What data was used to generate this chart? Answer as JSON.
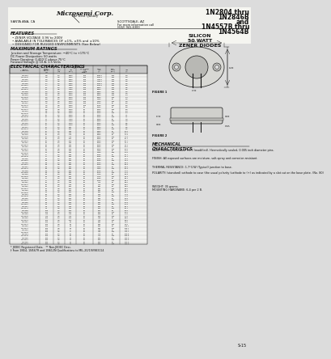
{
  "title_right_line1": "1N2804 thru",
  "title_right_line2": "1N2846B",
  "title_right_line3": "and",
  "title_right_line4": "1N4557B thru",
  "title_right_line5": "1N4564B",
  "silicon_label": "SILICON",
  "watt_label": "50 WATT",
  "zener_label": "ZENER DIODES",
  "company": "Microsemi Corp.",
  "company_sub": "The Best Quality",
  "city_left": "SANTA ANA, CA",
  "city_right": "SCOTTSDALE, AZ",
  "city_right2": "For more information call",
  "city_right3": "(602) 941-6300",
  "features_title": "FEATURES",
  "features": [
    "ZENER VOLTAGE 3.9V to 200V",
    "AVAILABLE IN TOLERANCES OF ±1%, ±5% and ±10%",
    "DESIGNED FOR RUGGED ENVIRONMENTS (See Below)"
  ],
  "max_ratings_title": "MAXIMUM RATINGS",
  "max_ratings": [
    "Junction and Storage Temperature: −40°C to +175°C",
    "DC Power Dissipation: 50 watts",
    "Power Derating: 0.400°C above 75°C",
    "Forward Voltage @ 10 A: 1.5 Volts"
  ],
  "elec_char_title": "ELECTRICAL CHARACTERISTICS",
  "elec_char_temp": "@25°C",
  "table_rows": [
    [
      "1N2804",
      "3.9",
      "2.0",
      "3200",
      "100",
      "12800",
      "150",
      "2.8"
    ],
    [
      "1N2804A",
      "3.9",
      "0.8",
      "3200",
      "100",
      "12800",
      "200",
      "2.8"
    ],
    [
      "1N2805",
      "4.3",
      "2.0",
      "2900",
      "100",
      "11600",
      "150",
      "3.0"
    ],
    [
      "1N2805A",
      "4.3",
      "0.8",
      "2900",
      "100",
      "11600",
      "200",
      "3.0"
    ],
    [
      "1N2806",
      "4.7",
      "2.0",
      "2650",
      "100",
      "10600",
      "150",
      "3.3"
    ],
    [
      "1N2806A",
      "4.7",
      "0.8",
      "2650",
      "100",
      "10600",
      "200",
      "3.3"
    ],
    [
      "1N2807",
      "5.1",
      "2.0",
      "2450",
      "100",
      "9800",
      "150",
      "3.6"
    ],
    [
      "1N2807A",
      "5.1",
      "0.8",
      "2450",
      "100",
      "9800",
      "200",
      "3.6"
    ],
    [
      "1N2808",
      "5.6",
      "2.0",
      "2200",
      "100",
      "8900",
      "100",
      "4.0"
    ],
    [
      "1N2808A",
      "5.6",
      "0.8",
      "2200",
      "100",
      "8900",
      "200",
      "4.0"
    ],
    [
      "1N2809",
      "6.2",
      "2.0",
      "2000",
      "100",
      "8100",
      "100",
      "4.4"
    ],
    [
      "1N2809A",
      "6.2",
      "0.8",
      "2000",
      "100",
      "8100",
      "200",
      "4.4"
    ],
    [
      "1N2810",
      "6.8",
      "2.0",
      "1800",
      "100",
      "7400",
      "50",
      "4.8"
    ],
    [
      "1N2810A",
      "6.8",
      "0.8",
      "1800",
      "100",
      "7400",
      "200",
      "4.8"
    ],
    [
      "1N2811",
      "7.5",
      "2.0",
      "1650",
      "100",
      "6700",
      "50",
      "5.3"
    ],
    [
      "1N2811A",
      "7.5",
      "0.8",
      "1650",
      "100",
      "6700",
      "200",
      "5.3"
    ],
    [
      "1N2812",
      "8.2",
      "2.0",
      "1500",
      "50",
      "6100",
      "50",
      "5.8"
    ],
    [
      "1N2812A",
      "8.2",
      "0.8",
      "1500",
      "50",
      "6100",
      "200",
      "5.8"
    ],
    [
      "1N2813",
      "9.1",
      "2.0",
      "1350",
      "50",
      "5500",
      "50",
      "6.4"
    ],
    [
      "1N2813A",
      "9.1",
      "0.8",
      "1350",
      "50",
      "5500",
      "200",
      "6.4"
    ],
    [
      "1N2814",
      "10",
      "2.0",
      "1250",
      "25",
      "5000",
      "50",
      "7.1"
    ],
    [
      "1N2814A",
      "10",
      "0.8",
      "1250",
      "25",
      "5000",
      "200",
      "7.1"
    ],
    [
      "1N2815",
      "11",
      "2.0",
      "1100",
      "25",
      "4500",
      "50",
      "7.8"
    ],
    [
      "1N2815A",
      "11",
      "0.8",
      "1100",
      "25",
      "4500",
      "200",
      "7.8"
    ],
    [
      "1N2816",
      "12",
      "2.0",
      "1000",
      "25",
      "4200",
      "50",
      "8.5"
    ],
    [
      "1N2816A",
      "12",
      "0.8",
      "1000",
      "25",
      "4200",
      "200",
      "8.5"
    ],
    [
      "1N2817",
      "13",
      "2.0",
      "950",
      "25",
      "3800",
      "50",
      "9.2"
    ],
    [
      "1N2817A",
      "13",
      "0.8",
      "950",
      "25",
      "3800",
      "200",
      "9.2"
    ],
    [
      "1N2818",
      "15",
      "2.0",
      "825",
      "25",
      "3300",
      "50",
      "10.6"
    ],
    [
      "1N2818A",
      "15",
      "0.8",
      "825",
      "25",
      "3300",
      "200",
      "10.6"
    ],
    [
      "1N2819",
      "16",
      "2.0",
      "775",
      "25",
      "3200",
      "50",
      "11.3"
    ],
    [
      "1N2819A",
      "16",
      "0.8",
      "775",
      "25",
      "3200",
      "200",
      "11.3"
    ],
    [
      "1N2820",
      "18",
      "2.0",
      "700",
      "25",
      "2800",
      "50",
      "12.7"
    ],
    [
      "1N2820A",
      "18",
      "0.8",
      "700",
      "25",
      "2800",
      "200",
      "12.7"
    ],
    [
      "1N2821",
      "20",
      "2.0",
      "625",
      "25",
      "2500",
      "50",
      "14.1"
    ],
    [
      "1N2821A",
      "20",
      "0.8",
      "625",
      "25",
      "2500",
      "200",
      "14.1"
    ],
    [
      "1N2822",
      "22",
      "2.0",
      "565",
      "25",
      "2300",
      "50",
      "15.5"
    ],
    [
      "1N2822A",
      "22",
      "0.8",
      "565",
      "25",
      "2300",
      "200",
      "15.5"
    ],
    [
      "1N2823",
      "24",
      "2.0",
      "520",
      "25",
      "2100",
      "50",
      "17.0"
    ],
    [
      "1N2823A",
      "24",
      "0.8",
      "520",
      "25",
      "2100",
      "200",
      "17.0"
    ],
    [
      "1N2824",
      "27",
      "2.0",
      "465",
      "25",
      "1850",
      "50",
      "19.1"
    ],
    [
      "1N2824A",
      "27",
      "0.8",
      "465",
      "25",
      "1850",
      "200",
      "19.1"
    ],
    [
      "1N2825",
      "30",
      "2.0",
      "420",
      "25",
      "1650",
      "50",
      "21.2"
    ],
    [
      "1N2825A",
      "30",
      "0.8",
      "420",
      "25",
      "1650",
      "200",
      "21.2"
    ],
    [
      "1N2826",
      "33",
      "2.0",
      "380",
      "25",
      "1500",
      "50",
      "23.3"
    ],
    [
      "1N2826A",
      "33",
      "0.8",
      "380",
      "25",
      "1500",
      "200",
      "23.3"
    ],
    [
      "1N2827",
      "36",
      "2.0",
      "350",
      "25",
      "1400",
      "50",
      "25.4"
    ],
    [
      "1N2827A",
      "36",
      "0.8",
      "350",
      "25",
      "1400",
      "200",
      "25.4"
    ],
    [
      "1N2828",
      "39",
      "2.0",
      "320",
      "25",
      "1275",
      "50",
      "27.5"
    ],
    [
      "1N2828A",
      "39",
      "0.8",
      "320",
      "25",
      "1275",
      "200",
      "27.5"
    ],
    [
      "1N2829",
      "43",
      "2.0",
      "290",
      "25",
      "1175",
      "50",
      "30.3"
    ],
    [
      "1N2829A",
      "43",
      "0.8",
      "290",
      "25",
      "1175",
      "200",
      "30.3"
    ],
    [
      "1N2830",
      "47",
      "2.0",
      "265",
      "25",
      "1050",
      "50",
      "33.1"
    ],
    [
      "1N2830A",
      "47",
      "0.8",
      "265",
      "25",
      "1050",
      "200",
      "33.1"
    ],
    [
      "1N2831",
      "51",
      "2.0",
      "245",
      "25",
      "975",
      "50",
      "36.0"
    ],
    [
      "1N2831A",
      "51",
      "0.8",
      "245",
      "25",
      "975",
      "200",
      "36.0"
    ],
    [
      "1N2832",
      "56",
      "2.0",
      "220",
      "25",
      "900",
      "50",
      "39.5"
    ],
    [
      "1N2832A",
      "56",
      "0.8",
      "220",
      "25",
      "900",
      "200",
      "39.5"
    ],
    [
      "1N2833",
      "62",
      "2.0",
      "200",
      "25",
      "800",
      "50",
      "43.7"
    ],
    [
      "1N2833A",
      "62",
      "0.8",
      "200",
      "25",
      "800",
      "200",
      "43.7"
    ],
    [
      "1N2834",
      "68",
      "2.0",
      "185",
      "25",
      "735",
      "50",
      "47.9"
    ],
    [
      "1N2834A",
      "68",
      "0.8",
      "185",
      "25",
      "735",
      "200",
      "47.9"
    ],
    [
      "1N2835",
      "75",
      "2.0",
      "165",
      "25",
      "665",
      "50",
      "52.9"
    ],
    [
      "1N2835A",
      "75",
      "0.8",
      "165",
      "25",
      "665",
      "200",
      "52.9"
    ],
    [
      "1N2836",
      "82",
      "2.0",
      "155",
      "25",
      "610",
      "50",
      "57.8"
    ],
    [
      "1N2836A",
      "82",
      "0.8",
      "155",
      "25",
      "610",
      "200",
      "57.8"
    ],
    [
      "1N2837",
      "91",
      "2.0",
      "140",
      "25",
      "550",
      "50",
      "64.1"
    ],
    [
      "1N2837A",
      "91",
      "0.8",
      "140",
      "25",
      "550",
      "200",
      "64.1"
    ],
    [
      "1N2838",
      "100",
      "2.0",
      "125",
      "25",
      "500",
      "50",
      "70.5"
    ],
    [
      "1N2838A",
      "100",
      "0.8",
      "125",
      "25",
      "500",
      "200",
      "70.5"
    ],
    [
      "1N2839",
      "110",
      "2.0",
      "115",
      "25",
      "455",
      "50",
      "77.5"
    ],
    [
      "1N2839A",
      "110",
      "0.8",
      "115",
      "25",
      "455",
      "200",
      "77.5"
    ],
    [
      "1N2840",
      "120",
      "2.0",
      "105",
      "25",
      "415",
      "50",
      "84.6"
    ],
    [
      "1N2840A",
      "120",
      "0.8",
      "105",
      "25",
      "415",
      "200",
      "84.6"
    ],
    [
      "1N2841",
      "130",
      "2.0",
      "95",
      "25",
      "385",
      "50",
      "91.6"
    ],
    [
      "1N2841A",
      "130",
      "0.8",
      "95",
      "25",
      "385",
      "200",
      "91.6"
    ],
    [
      "1N2842",
      "150",
      "2.0",
      "83",
      "25",
      "330",
      "50",
      "105.7"
    ],
    [
      "1N2842A",
      "150",
      "0.8",
      "83",
      "25",
      "330",
      "200",
      "105.7"
    ],
    [
      "1N2843",
      "160",
      "2.0",
      "77",
      "25",
      "315",
      "50",
      "112.7"
    ],
    [
      "1N2843A",
      "160",
      "0.8",
      "77",
      "25",
      "315",
      "200",
      "112.7"
    ],
    [
      "1N2844",
      "180",
      "2.0",
      "68",
      "25",
      "275",
      "50",
      "126.8"
    ],
    [
      "1N2844A",
      "180",
      "0.8",
      "68",
      "25",
      "275",
      "200",
      "126.8"
    ],
    [
      "1N2845",
      "200",
      "2.0",
      "63",
      "25",
      "250",
      "50",
      "141.0"
    ],
    [
      "1N2845A",
      "200",
      "0.8",
      "63",
      "25",
      "250",
      "200",
      "141.0"
    ],
    [
      "1N2846",
      "200",
      "2.0",
      "63",
      "25",
      "250",
      "50",
      "141.0"
    ],
    [
      "1N2846A",
      "200",
      "0.8",
      "63",
      "25",
      "250",
      "200",
      "141.0"
    ]
  ],
  "mech_title": "MECHANICAL\nCHARACTERISTICS",
  "mech_items": [
    [
      "CASE:",
      "Industry Standard TO-3 (modified). Hermetically sealed, 0.005 inch diameter pins."
    ],
    [
      "FINISH:",
      "All exposed surfaces are moisture, salt-spray and corrosion resistant."
    ],
    [
      "THERMAL RESISTANCE:",
      "1.7°C/W (Typical) junction to base."
    ],
    [
      "POLARITY:",
      "(standard) cathode to case (the usual polarity (cathode to (+) as indicated by a slot cut on the base plate. (No. 80)"
    ],
    [
      "WEIGHT:",
      "35 grams."
    ],
    [
      "MOUNTING HARDWARE:",
      "6-4 per 2 B."
    ]
  ],
  "footnote1": "* JEDEC Registered Data.   ** Non-JEDEC Desc.",
  "footnote2": "† From 1N54, 1N567R and 1N612N Qualifications to MIL-20/19V983114",
  "page_num": "S-15",
  "bg_color": "#dcdcdc",
  "text_color": "#111111",
  "col_headers": [
    "JEDEC\nTYPE NO.",
    "NOM.\nZENER\nVOLT\n(V)",
    "ZZT\n(Ω)",
    "IZT\n(mA)",
    "MAX ZZK\n(Ω)\n@IZK\n0.25A",
    "MAX\nIZM\n(A)",
    "REV\nLEAK\n(mA)",
    "IZT\n(A)"
  ]
}
